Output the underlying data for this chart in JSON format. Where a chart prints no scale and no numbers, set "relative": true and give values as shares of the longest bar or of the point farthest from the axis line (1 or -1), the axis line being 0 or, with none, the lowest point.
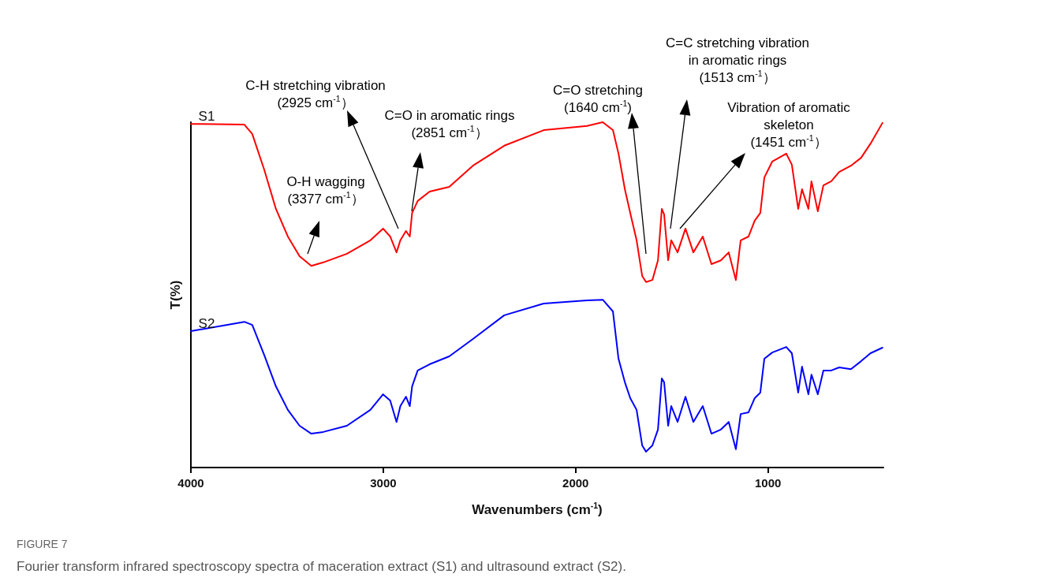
{
  "chart_data": {
    "type": "line",
    "title": "FIGURE 7",
    "subtitle": "Fourier transform infrared spectroscopy spectra of maceration extract (S1) and ultrasound extract (S2).",
    "xlabel": "Wavenumbers (cm$^{-1}$)",
    "ylabel": "T(%)",
    "relative": true,
    "legend": false,
    "grid": false,
    "marker": "none",
    "line_style": "solid",
    "xlim": [
      4000,
      400
    ],
    "xticks": [
      4000,
      3000,
      2000,
      1000
    ],
    "x": [
      4000,
      3722,
      3681,
      3619,
      3558,
      3496,
      3435,
      3374,
      3312,
      3189,
      3067,
      3001,
      2964,
      2931,
      2911,
      2882,
      2862,
      2850,
      2821,
      2759,
      2657,
      2534,
      2371,
      2166,
      1941,
      1859,
      1806,
      1777,
      1744,
      1716,
      1683,
      1654,
      1634,
      1601,
      1572,
      1552,
      1540,
      1519,
      1503,
      1470,
      1429,
      1388,
      1339,
      1294,
      1245,
      1204,
      1167,
      1142,
      1101,
      1069,
      1040,
      1019,
      978,
      905,
      876,
      843,
      823,
      790,
      774,
      741,
      712,
      671,
      630,
      569,
      516,
      467,
      405
    ],
    "series": [
      {
        "name": "S1",
        "color": "#ff0000",
        "values": [
          0.995,
          0.993,
          0.966,
          0.863,
          0.749,
          0.669,
          0.612,
          0.584,
          0.594,
          0.619,
          0.658,
          0.692,
          0.669,
          0.623,
          0.658,
          0.685,
          0.669,
          0.737,
          0.772,
          0.799,
          0.813,
          0.874,
          0.932,
          0.977,
          0.989,
          1.0,
          0.977,
          0.909,
          0.806,
          0.737,
          0.658,
          0.555,
          0.537,
          0.543,
          0.6,
          0.749,
          0.733,
          0.6,
          0.658,
          0.623,
          0.692,
          0.623,
          0.669,
          0.589,
          0.6,
          0.623,
          0.543,
          0.658,
          0.669,
          0.715,
          0.737,
          0.84,
          0.886,
          0.909,
          0.877,
          0.749,
          0.806,
          0.749,
          0.829,
          0.742,
          0.817,
          0.829,
          0.856,
          0.874,
          0.897,
          0.938,
          0.998
        ]
      },
      {
        "name": "S2",
        "color": "#0000ff",
        "values": [
          0.395,
          0.422,
          0.413,
          0.326,
          0.235,
          0.167,
          0.121,
          0.098,
          0.103,
          0.121,
          0.167,
          0.212,
          0.194,
          0.132,
          0.178,
          0.205,
          0.178,
          0.235,
          0.281,
          0.299,
          0.322,
          0.372,
          0.441,
          0.475,
          0.484,
          0.486,
          0.452,
          0.315,
          0.247,
          0.201,
          0.167,
          0.064,
          0.046,
          0.064,
          0.11,
          0.258,
          0.247,
          0.121,
          0.178,
          0.132,
          0.205,
          0.132,
          0.178,
          0.098,
          0.11,
          0.132,
          0.053,
          0.155,
          0.16,
          0.201,
          0.217,
          0.315,
          0.333,
          0.349,
          0.331,
          0.217,
          0.292,
          0.212,
          0.269,
          0.212,
          0.281,
          0.281,
          0.29,
          0.285,
          0.308,
          0.331,
          0.347
        ]
      }
    ],
    "annotations": [
      "O-H wagging\n(3377 cm$^{-1}$）",
      "C-H stretching vibration\n(2925 cm$^{-1}$）",
      "C=O in aromatic rings\n(2851 cm$^{-1}$）",
      "C=O stretching\n(1640 cm$^{-1}$)",
      "C=C stretching vibration\nin aromatic rings\n(1513 cm$^{-1}$）",
      "Vibration of aromatic\nskeleton\n(1451 cm$^{-1}$）"
    ]
  }
}
